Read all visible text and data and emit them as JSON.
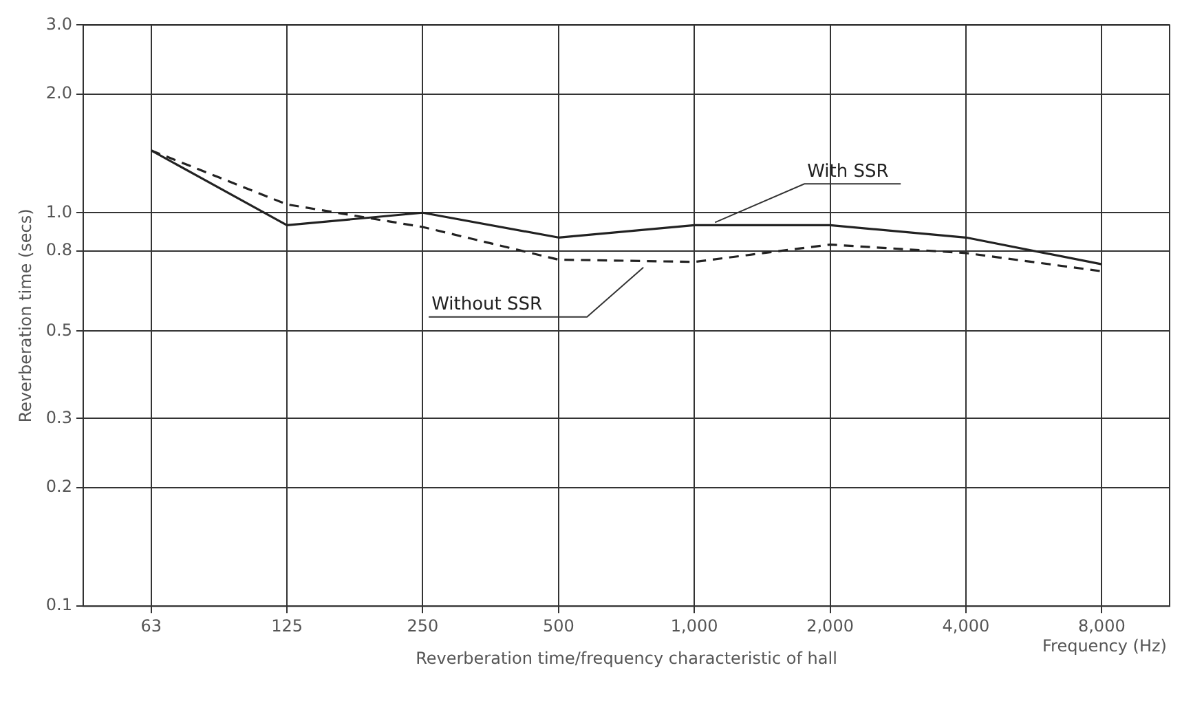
{
  "chart_data": {
    "type": "line",
    "xlabel": "Frequency (Hz)",
    "ylabel": "Reverberation time (secs)",
    "annotations": [
      "Reverberation time/frequency characteristic of hall"
    ],
    "categories": [
      "63",
      "125",
      "250",
      "500",
      "1,000",
      "2,000",
      "4,000",
      "8,000"
    ],
    "series": [
      {
        "name": "With SSR",
        "color": "#222222",
        "line_style": "solid",
        "values": [
          1.44,
          0.93,
          1.0,
          0.865,
          0.93,
          0.93,
          0.865,
          0.74
        ]
      },
      {
        "name": "Without SSR",
        "color": "#222222",
        "line_style": "dashed",
        "values": [
          1.44,
          1.05,
          0.92,
          0.76,
          0.75,
          0.83,
          0.79,
          0.71
        ]
      }
    ],
    "log": "y",
    "ylim": [
      0.1,
      3.0
    ],
    "yticks": [
      {
        "value": 0.1,
        "label": "0.1"
      },
      {
        "value": 0.2,
        "label": "0.2"
      },
      {
        "value": 0.3,
        "label": "0.3"
      },
      {
        "value": 0.5,
        "label": "0.5"
      },
      {
        "value": 0.8,
        "label": "0.8"
      },
      {
        "value": 1,
        "label": "1.0"
      },
      {
        "value": 2,
        "label": "2.0"
      },
      {
        "value": 3,
        "label": "3.0"
      }
    ],
    "grid": true,
    "legend": false,
    "marker": "none"
  }
}
